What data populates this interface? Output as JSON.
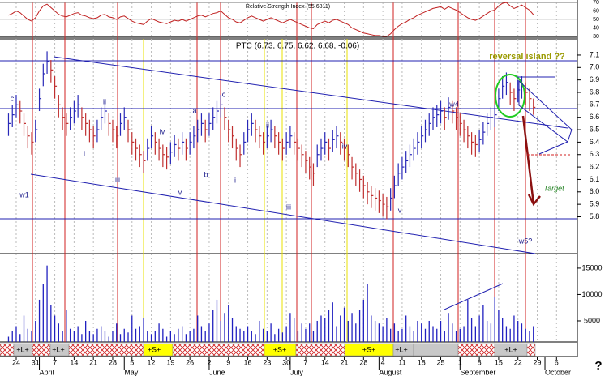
{
  "chart_data": [
    {
      "type": "line",
      "title": "Relative Strength Index (55.6811)",
      "color": "#c02020",
      "ylim": [
        28,
        72
      ],
      "yticks": [
        70,
        60,
        50,
        40,
        30
      ],
      "xlim": [
        -2.2,
        147.4
      ],
      "values": [
        55,
        57,
        60,
        58,
        54,
        50,
        48,
        52,
        60,
        66,
        68,
        64,
        60,
        56,
        54,
        53,
        55,
        57,
        58,
        55,
        54,
        52,
        51,
        52,
        55,
        56,
        53,
        52,
        50,
        53,
        54,
        51,
        48,
        46,
        45,
        44,
        48,
        51,
        49,
        47,
        46,
        45,
        47,
        49,
        48,
        50,
        48,
        50,
        52,
        54,
        55,
        53,
        55,
        57,
        58,
        60,
        56,
        52,
        50,
        47,
        46,
        49,
        52,
        54,
        52,
        50,
        48,
        50,
        52,
        50,
        48,
        46,
        48,
        50,
        48,
        46,
        44,
        42,
        40,
        39,
        44,
        46,
        48,
        46,
        49,
        50,
        48,
        46,
        44,
        40,
        38,
        36,
        34,
        33,
        32,
        31,
        31,
        30,
        30,
        33,
        38,
        42,
        45,
        47,
        50,
        52,
        55,
        57,
        59,
        61,
        63,
        64,
        65,
        62,
        65,
        63,
        61,
        58,
        55,
        52,
        50,
        49,
        51,
        54,
        57,
        60,
        61,
        66,
        69,
        70,
        66,
        63,
        65,
        67,
        64,
        61,
        55.68
      ]
    },
    {
      "type": "ohlc",
      "title": "PTC (6.73, 6.75, 6.62, 6.68, -0.06)",
      "up_color": "#2828b8",
      "down_color": "#c03030",
      "ylim": [
        5.51,
        7.23
      ],
      "xlim": [
        -2.2,
        147.4
      ],
      "yticks": [
        {
          "value": 7.1,
          "label": "7.1"
        },
        {
          "value": 7,
          "label": "7.0"
        },
        6.9,
        6.8,
        6.7,
        6.6,
        6.5,
        6.4,
        6.3,
        6.2,
        6.1,
        {
          "value": 6,
          "label": "6.0"
        },
        5.9,
        5.8
      ],
      "high": [
        6.63,
        6.7,
        6.78,
        6.73,
        6.63,
        6.53,
        6.48,
        6.58,
        6.83,
        7.03,
        7.13,
        7.06,
        6.93,
        6.78,
        6.68,
        6.63,
        6.68,
        6.73,
        6.78,
        6.68,
        6.63,
        6.58,
        6.53,
        6.58,
        6.68,
        6.73,
        6.63,
        6.58,
        6.53,
        6.63,
        6.68,
        6.58,
        6.48,
        6.43,
        6.38,
        6.33,
        6.43,
        6.53,
        6.48,
        6.43,
        6.38,
        6.36,
        6.4,
        6.46,
        6.43,
        6.48,
        6.43,
        6.48,
        6.53,
        6.58,
        6.63,
        6.58,
        6.63,
        6.68,
        6.73,
        6.78,
        6.68,
        6.58,
        6.53,
        6.43,
        6.38,
        6.48,
        6.58,
        6.63,
        6.58,
        6.53,
        6.48,
        6.53,
        6.58,
        6.53,
        6.48,
        6.43,
        6.48,
        6.53,
        6.48,
        6.43,
        6.38,
        6.33,
        6.28,
        6.23,
        6.38,
        6.43,
        6.48,
        6.43,
        6.5,
        6.53,
        6.48,
        6.43,
        6.38,
        6.28,
        6.23,
        6.18,
        6.13,
        6.08,
        6.05,
        6.03,
        6.01,
        5.98,
        5.96,
        6.03,
        6.13,
        6.23,
        6.28,
        6.33,
        6.38,
        6.43,
        6.48,
        6.53,
        6.58,
        6.63,
        6.68,
        6.7,
        6.73,
        6.68,
        6.76,
        6.73,
        6.68,
        6.63,
        6.58,
        6.53,
        6.48,
        6.46,
        6.5,
        6.56,
        6.63,
        6.68,
        6.7,
        6.83,
        6.93,
        6.96,
        6.88,
        6.83,
        6.9,
        6.93,
        6.88,
        6.83,
        6.75
      ],
      "low": [
        6.45,
        6.52,
        6.6,
        6.55,
        6.45,
        6.35,
        6.3,
        6.4,
        6.65,
        6.85,
        6.95,
        6.88,
        6.75,
        6.6,
        6.5,
        6.45,
        6.5,
        6.55,
        6.6,
        6.5,
        6.45,
        6.4,
        6.35,
        6.4,
        6.5,
        6.55,
        6.45,
        6.4,
        6.35,
        6.45,
        6.5,
        6.4,
        6.3,
        6.25,
        6.2,
        6.15,
        6.25,
        6.35,
        6.3,
        6.25,
        6.2,
        6.18,
        6.22,
        6.28,
        6.25,
        6.3,
        6.25,
        6.3,
        6.35,
        6.4,
        6.45,
        6.4,
        6.45,
        6.5,
        6.55,
        6.6,
        6.5,
        6.4,
        6.35,
        6.25,
        6.2,
        6.3,
        6.4,
        6.45,
        6.4,
        6.35,
        6.3,
        6.35,
        6.4,
        6.35,
        6.3,
        6.25,
        6.3,
        6.35,
        6.3,
        6.25,
        6.2,
        6.15,
        6.1,
        6.05,
        6.2,
        6.25,
        6.3,
        6.25,
        6.32,
        6.35,
        6.3,
        6.25,
        6.2,
        6.1,
        6.05,
        6.0,
        5.95,
        5.9,
        5.87,
        5.85,
        5.83,
        5.8,
        5.78,
        5.85,
        5.95,
        6.05,
        6.1,
        6.15,
        6.2,
        6.25,
        6.3,
        6.35,
        6.4,
        6.45,
        6.5,
        6.52,
        6.55,
        6.5,
        6.58,
        6.55,
        6.5,
        6.45,
        6.4,
        6.35,
        6.3,
        6.28,
        6.32,
        6.38,
        6.45,
        6.5,
        6.52,
        6.65,
        6.75,
        6.78,
        6.7,
        6.65,
        6.72,
        6.75,
        6.7,
        6.65,
        6.62
      ],
      "close": [
        6.55,
        6.62,
        6.7,
        6.65,
        6.55,
        6.45,
        6.4,
        6.5,
        6.75,
        6.95,
        7.05,
        6.98,
        6.85,
        6.7,
        6.6,
        6.55,
        6.6,
        6.65,
        6.7,
        6.6,
        6.55,
        6.5,
        6.45,
        6.5,
        6.6,
        6.65,
        6.55,
        6.5,
        6.45,
        6.55,
        6.6,
        6.5,
        6.4,
        6.35,
        6.3,
        6.25,
        6.35,
        6.45,
        6.4,
        6.35,
        6.3,
        6.28,
        6.32,
        6.38,
        6.35,
        6.4,
        6.35,
        6.4,
        6.45,
        6.5,
        6.55,
        6.5,
        6.55,
        6.6,
        6.65,
        6.7,
        6.6,
        6.5,
        6.45,
        6.35,
        6.3,
        6.4,
        6.5,
        6.55,
        6.5,
        6.45,
        6.4,
        6.45,
        6.5,
        6.45,
        6.4,
        6.35,
        6.4,
        6.45,
        6.4,
        6.35,
        6.3,
        6.25,
        6.2,
        6.15,
        6.3,
        6.35,
        6.4,
        6.35,
        6.42,
        6.45,
        6.4,
        6.35,
        6.3,
        6.2,
        6.15,
        6.1,
        6.05,
        6.0,
        5.97,
        5.95,
        5.93,
        5.9,
        5.88,
        5.95,
        6.05,
        6.15,
        6.2,
        6.25,
        6.3,
        6.35,
        6.4,
        6.45,
        6.5,
        6.55,
        6.6,
        6.62,
        6.65,
        6.6,
        6.68,
        6.65,
        6.6,
        6.55,
        6.5,
        6.45,
        6.4,
        6.38,
        6.42,
        6.48,
        6.55,
        6.6,
        6.62,
        6.75,
        6.85,
        6.88,
        6.8,
        6.75,
        6.82,
        6.85,
        6.8,
        6.75,
        6.68
      ],
      "annotations": [
        "c",
        "w1",
        "ii",
        "iv",
        "i",
        "iii",
        "a",
        "b",
        "v",
        "c",
        "i",
        "ii",
        "iv",
        "iii",
        "v",
        "w4",
        "w5?",
        "reversal island ??",
        "Target"
      ]
    },
    {
      "type": "bar",
      "color": "#2020c0",
      "ylim": [
        1000,
        17600
      ],
      "xlim": [
        -2.2,
        147.4
      ],
      "yticks": [
        5000,
        10000,
        15000
      ],
      "values": [
        2000,
        3000,
        4000,
        2500,
        6000,
        3500,
        3000,
        5000,
        9000,
        12000,
        15500,
        8000,
        6000,
        4500,
        3000,
        7000,
        3500,
        3000,
        4000,
        2500,
        5000,
        3000,
        2500,
        3500,
        4000,
        3000,
        2000,
        3000,
        4500,
        2500,
        3500,
        2800,
        6000,
        3500,
        4000,
        5500,
        3000,
        2500,
        3000,
        4500,
        3500,
        2000,
        3000,
        2500,
        3500,
        4000,
        2500,
        3000,
        3500,
        6000,
        4000,
        3000,
        4500,
        7000,
        9000,
        5000,
        6500,
        8000,
        5500,
        4000,
        3500,
        3000,
        4000,
        3000,
        2500,
        5000,
        3500,
        3000,
        4500,
        2500,
        3500,
        2800,
        4000,
        6500,
        5500,
        3000,
        4500,
        3500,
        4500,
        3000,
        5000,
        6000,
        5500,
        7000,
        8500,
        4000,
        6000,
        7500,
        5000,
        6500,
        4500,
        7000,
        9000,
        12000,
        6000,
        5000,
        4500,
        4000,
        5500,
        3500,
        4500,
        3000,
        3500,
        6000,
        4000,
        3000,
        5000,
        4500,
        3500,
        5000,
        4000,
        3500,
        5000,
        3000,
        6500,
        4500,
        3000,
        3500,
        4000,
        9000,
        5500,
        4000,
        6000,
        8000,
        5000,
        4500,
        9500,
        7000,
        5500,
        4000,
        3500,
        6000,
        5000,
        4500,
        3500,
        3000,
        4000
      ],
      "xticks": [
        {
          "value": 2,
          "label": "24"
        },
        {
          "value": 7,
          "label": "31"
        },
        {
          "value": 12,
          "label": "7"
        },
        {
          "value": 17,
          "label": "14"
        },
        {
          "value": 22,
          "label": "21"
        },
        {
          "value": 27,
          "label": "28"
        },
        {
          "value": 32,
          "label": "5"
        },
        {
          "value": 37,
          "label": "12"
        },
        {
          "value": 42,
          "label": "19"
        },
        {
          "value": 47,
          "label": "26"
        },
        {
          "value": 52,
          "label": "2"
        },
        {
          "value": 57,
          "label": "9"
        },
        {
          "value": 62,
          "label": "16"
        },
        {
          "value": 67,
          "label": "23"
        },
        {
          "value": 72,
          "label": "30"
        },
        {
          "value": 77,
          "label": "7"
        },
        {
          "value": 82,
          "label": "14"
        },
        {
          "value": 87,
          "label": "21"
        },
        {
          "value": 92,
          "label": "28"
        },
        {
          "value": 97,
          "label": "4"
        },
        {
          "value": 102,
          "label": "11"
        },
        {
          "value": 107,
          "label": "18"
        },
        {
          "value": 112,
          "label": "25"
        },
        {
          "value": 117,
          "label": "1"
        },
        {
          "value": 122,
          "label": "8"
        },
        {
          "value": 127,
          "label": "15"
        },
        {
          "value": 132,
          "label": "22"
        },
        {
          "value": 137,
          "label": "29"
        },
        {
          "value": 142,
          "label": "6"
        }
      ],
      "month_ticks": [
        {
          "value": 8,
          "label": "April"
        },
        {
          "value": 30,
          "label": "May"
        },
        {
          "value": 52,
          "label": "June"
        },
        {
          "value": 73,
          "label": "July"
        },
        {
          "value": 96,
          "label": "August"
        },
        {
          "value": 117,
          "label": "September"
        },
        {
          "value": 139,
          "label": "October"
        }
      ],
      "signal_labels": [
        "+L+",
        "+L+",
        "+S+",
        "+S+",
        "+S+",
        "+L+",
        "+L+"
      ],
      "note": "?"
    }
  ]
}
